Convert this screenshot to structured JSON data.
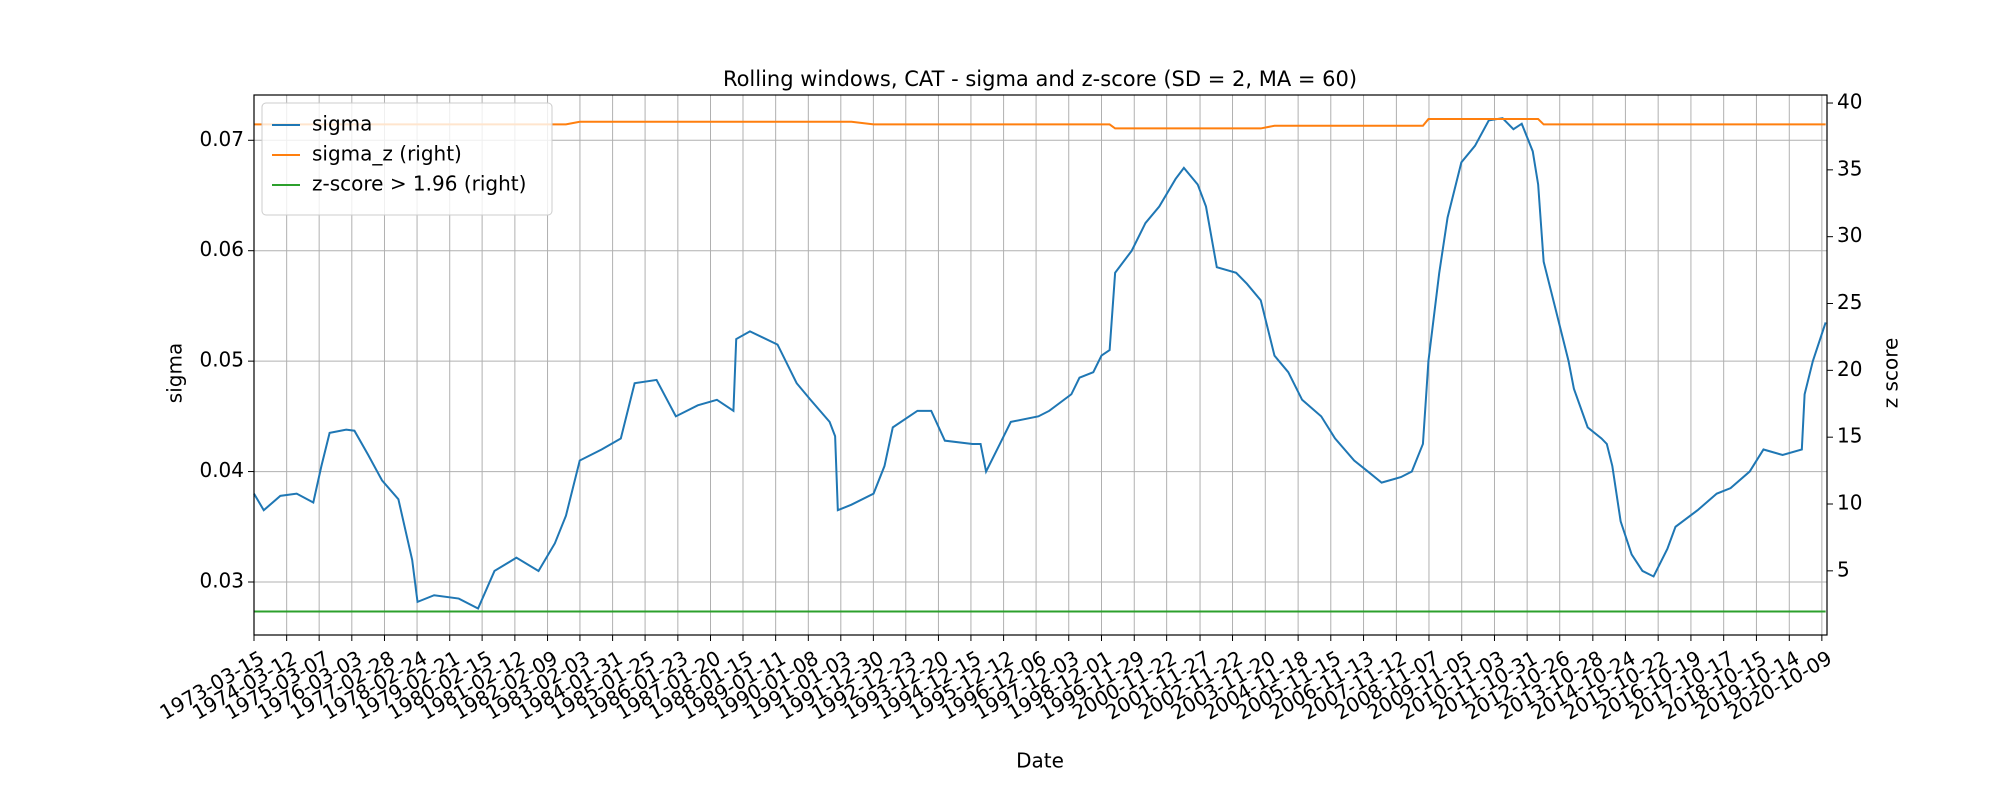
{
  "chart_data": {
    "type": "line",
    "title": "Rolling windows, CAT - sigma and z-score (SD = 2, MA = 60)",
    "x_label": "Date",
    "y_label": "sigma",
    "y2_label": "z score",
    "x": [
      "1973-03-15",
      "1973-07-01",
      "1974-01-01",
      "1974-07-01",
      "1975-01-01",
      "1975-04-01",
      "1975-07-01",
      "1976-01-01",
      "1976-04-01",
      "1976-09-01",
      "1977-02-01",
      "1977-08-01",
      "1978-01-01",
      "1978-03-01",
      "1978-09-01",
      "1979-06-01",
      "1980-01-01",
      "1980-07-01",
      "1981-03-01",
      "1981-11-01",
      "1982-05-01",
      "1982-09-01",
      "1983-02-01",
      "1983-10-01",
      "1984-05-01",
      "1984-10-01",
      "1985-06-01",
      "1986-01-01",
      "1986-09-01",
      "1987-04-01",
      "1987-10-01",
      "1987-11-01",
      "1988-04-01",
      "1989-02-01",
      "1989-09-01",
      "1990-02-01",
      "1990-09-01",
      "1990-11-01",
      "1990-12-01",
      "1991-05-01",
      "1992-01-01",
      "1992-05-01",
      "1992-08-01",
      "1993-05-01",
      "1993-10-01",
      "1994-03-01",
      "1995-01-01",
      "1995-04-01",
      "1995-06-01",
      "1995-11-01",
      "1996-03-01",
      "1997-01-01",
      "1997-05-01",
      "1998-01-01",
      "1998-04-01",
      "1998-09-01",
      "1998-12-01",
      "1999-03-01",
      "1999-05-01",
      "1999-11-01",
      "2000-04-01",
      "2000-09-01",
      "2001-03-01",
      "2001-06-01",
      "2001-11-01",
      "2002-02-01",
      "2002-06-01",
      "2003-01-01",
      "2003-05-01",
      "2003-10-01",
      "2004-03-01",
      "2004-08-01",
      "2005-01-01",
      "2005-08-01",
      "2006-01-01",
      "2006-08-01",
      "2007-01-01",
      "2007-06-01",
      "2008-01-01",
      "2008-05-01",
      "2008-09-01",
      "2008-11-01",
      "2009-03-01",
      "2009-06-01",
      "2009-11-01",
      "2010-04-01",
      "2010-09-01",
      "2011-02-01",
      "2011-06-01",
      "2011-09-01",
      "2012-01-01",
      "2012-03-01",
      "2012-05-01",
      "2012-09-01",
      "2013-02-01",
      "2013-04-01",
      "2013-09-01",
      "2014-02-01",
      "2014-04-01",
      "2014-06-01",
      "2014-09-01",
      "2015-01-01",
      "2015-05-01",
      "2015-09-01",
      "2016-02-01",
      "2016-05-01",
      "2017-01-01",
      "2017-08-01",
      "2018-01-01",
      "2018-08-01",
      "2019-01-01",
      "2019-08-01",
      "2020-03-01",
      "2020-04-01",
      "2020-07-01",
      "2020-11-20"
    ],
    "series": [
      {
        "name": "sigma",
        "color": "#1f77b4",
        "axis": "y",
        "values": [
          0.038,
          0.0365,
          0.0378,
          0.038,
          0.0372,
          0.0405,
          0.0435,
          0.0438,
          0.0437,
          0.0415,
          0.0392,
          0.0375,
          0.032,
          0.0282,
          0.0288,
          0.0285,
          0.0276,
          0.031,
          0.0322,
          0.031,
          0.0335,
          0.036,
          0.041,
          0.042,
          0.043,
          0.048,
          0.0483,
          0.045,
          0.046,
          0.0465,
          0.0455,
          0.052,
          0.0527,
          0.0515,
          0.048,
          0.0465,
          0.0445,
          0.0432,
          0.0365,
          0.037,
          0.038,
          0.0405,
          0.044,
          0.0455,
          0.0455,
          0.0428,
          0.0425,
          0.0425,
          0.04,
          0.0425,
          0.0445,
          0.045,
          0.0455,
          0.047,
          0.0485,
          0.049,
          0.0505,
          0.051,
          0.058,
          0.06,
          0.0625,
          0.064,
          0.0665,
          0.0675,
          0.066,
          0.064,
          0.0585,
          0.058,
          0.057,
          0.0555,
          0.0505,
          0.049,
          0.0465,
          0.045,
          0.043,
          0.041,
          0.04,
          0.039,
          0.0395,
          0.04,
          0.0425,
          0.05,
          0.058,
          0.063,
          0.068,
          0.0695,
          0.0718,
          0.072,
          0.071,
          0.0715,
          0.069,
          0.066,
          0.059,
          0.055,
          0.05,
          0.0475,
          0.044,
          0.043,
          0.0425,
          0.0405,
          0.0355,
          0.0325,
          0.031,
          0.0305,
          0.033,
          0.035,
          0.0365,
          0.038,
          0.0385,
          0.04,
          0.042,
          0.0415,
          0.042,
          0.047,
          0.05,
          0.0535
        ]
      },
      {
        "name": "sigma_z (right)",
        "color": "#ff7f0e",
        "axis": "y2",
        "values": [
          38.4,
          38.4,
          38.4,
          38.4,
          38.4,
          38.4,
          38.4,
          38.4,
          38.4,
          38.4,
          38.4,
          38.4,
          38.4,
          38.4,
          38.4,
          38.4,
          38.4,
          38.4,
          38.4,
          38.4,
          38.4,
          38.4,
          38.6,
          38.6,
          38.6,
          38.6,
          38.6,
          38.6,
          38.6,
          38.6,
          38.6,
          38.6,
          38.6,
          38.6,
          38.6,
          38.6,
          38.6,
          38.6,
          38.6,
          38.6,
          38.4,
          38.4,
          38.4,
          38.4,
          38.4,
          38.4,
          38.4,
          38.4,
          38.4,
          38.4,
          38.4,
          38.4,
          38.4,
          38.4,
          38.4,
          38.4,
          38.4,
          38.4,
          38.1,
          38.1,
          38.1,
          38.1,
          38.1,
          38.1,
          38.1,
          38.1,
          38.1,
          38.1,
          38.1,
          38.1,
          38.3,
          38.3,
          38.3,
          38.3,
          38.3,
          38.3,
          38.3,
          38.3,
          38.3,
          38.3,
          38.3,
          38.8,
          38.8,
          38.8,
          38.8,
          38.8,
          38.8,
          38.8,
          38.8,
          38.8,
          38.8,
          38.8,
          38.4,
          38.4,
          38.4,
          38.4,
          38.4,
          38.4,
          38.4,
          38.4,
          38.4,
          38.4,
          38.4,
          38.4,
          38.4,
          38.4,
          38.4,
          38.4,
          38.4,
          38.4,
          38.4,
          38.4,
          38.4,
          38.4,
          38.4,
          38.4
        ]
      },
      {
        "name": "z-score > 1.96 (right)",
        "color": "#2ca02c",
        "axis": "y2",
        "values": [
          1.96,
          1.96,
          1.96,
          1.96,
          1.96,
          1.96,
          1.96,
          1.96,
          1.96,
          1.96,
          1.96,
          1.96,
          1.96,
          1.96,
          1.96,
          1.96,
          1.96,
          1.96,
          1.96,
          1.96,
          1.96,
          1.96,
          1.96,
          1.96,
          1.96,
          1.96,
          1.96,
          1.96,
          1.96,
          1.96,
          1.96,
          1.96,
          1.96,
          1.96,
          1.96,
          1.96,
          1.96,
          1.96,
          1.96,
          1.96,
          1.96,
          1.96,
          1.96,
          1.96,
          1.96,
          1.96,
          1.96,
          1.96,
          1.96,
          1.96,
          1.96,
          1.96,
          1.96,
          1.96,
          1.96,
          1.96,
          1.96,
          1.96,
          1.96,
          1.96,
          1.96,
          1.96,
          1.96,
          1.96,
          1.96,
          1.96,
          1.96,
          1.96,
          1.96,
          1.96,
          1.96,
          1.96,
          1.96,
          1.96,
          1.96,
          1.96,
          1.96,
          1.96,
          1.96,
          1.96,
          1.96,
          1.96,
          1.96,
          1.96,
          1.96,
          1.96,
          1.96,
          1.96,
          1.96,
          1.96,
          1.96,
          1.96,
          1.96,
          1.96,
          1.96,
          1.96,
          1.96,
          1.96,
          1.96,
          1.96,
          1.96,
          1.96,
          1.96,
          1.96,
          1.96,
          1.96,
          1.96,
          1.96,
          1.96,
          1.96,
          1.96,
          1.96,
          1.96,
          1.96,
          1.96,
          1.96
        ]
      }
    ],
    "xlim": [
      "1973-03-15",
      "2020-12-05"
    ],
    "xticks": [
      "1973-03-15",
      "1974-03-12",
      "1975-03-07",
      "1976-03-03",
      "1977-02-28",
      "1978-02-24",
      "1979-02-21",
      "1980-02-15",
      "1981-02-12",
      "1982-02-09",
      "1983-02-03",
      "1984-01-31",
      "1985-01-25",
      "1986-01-23",
      "1987-01-20",
      "1988-01-15",
      "1989-01-11",
      "1990-01-08",
      "1991-01-03",
      "1991-12-30",
      "1992-12-23",
      "1993-12-20",
      "1994-12-15",
      "1995-12-12",
      "1996-12-06",
      "1997-12-03",
      "1998-12-01",
      "1999-11-29",
      "2000-11-22",
      "2001-11-27",
      "2002-11-22",
      "2003-11-20",
      "2004-11-18",
      "2005-11-15",
      "2006-11-13",
      "2007-11-12",
      "2008-11-07",
      "2009-11-05",
      "2010-11-03",
      "2011-10-31",
      "2012-10-26",
      "2013-10-28",
      "2014-10-24",
      "2015-10-22",
      "2016-10-19",
      "2017-10-17",
      "2018-10-15",
      "2019-10-14",
      "2020-10-09"
    ],
    "ylim": [
      0.0252,
      0.0741
    ],
    "yticks": [
      0.03,
      0.04,
      0.05,
      0.06,
      0.07
    ],
    "y2lim": [
      0.2,
      40.6
    ],
    "y2ticks": [
      5,
      10,
      15,
      20,
      25,
      30,
      35,
      40
    ],
    "grid": true,
    "legend": "upper left"
  }
}
